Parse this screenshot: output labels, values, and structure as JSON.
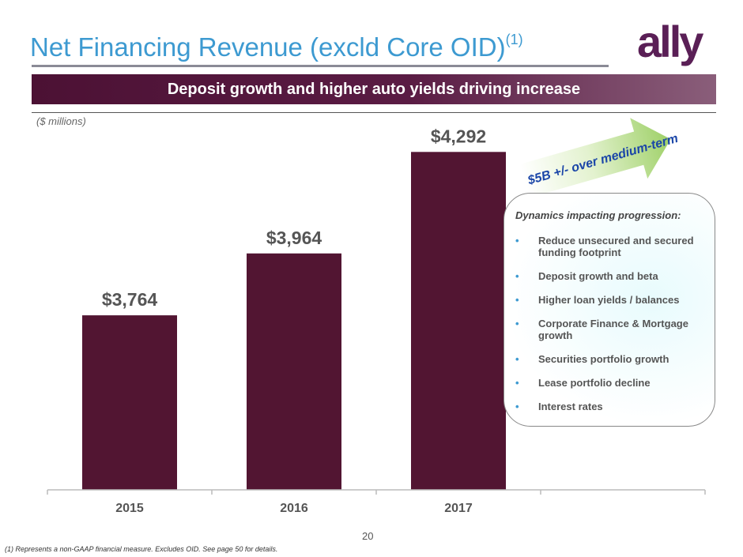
{
  "header": {
    "title": "Net Financing Revenue (excld Core OID)",
    "title_sup": "(1)",
    "logo_text": "ally",
    "banner_text": "Deposit growth and higher auto yields driving increase",
    "units_note": "($ millions)"
  },
  "chart_data": {
    "type": "bar",
    "title": "Net Financing Revenue (excld Core OID)",
    "categories": [
      "2015",
      "2016",
      "2017"
    ],
    "values": [
      3764,
      3964,
      4292
    ],
    "value_labels": [
      "$3,764",
      "$3,964",
      "$4,292"
    ],
    "ylabel": "($ millions)",
    "ylim": [
      3200,
      4400
    ],
    "grid": false,
    "bar_color": "#521532"
  },
  "callout": {
    "arrow_text": "$5B +/- over medium-term"
  },
  "dynamics": {
    "title": "Dynamics impacting progression:",
    "items": [
      "Reduce unsecured and secured funding footprint",
      "Deposit growth and beta",
      "Higher loan yields / balances",
      "Corporate Finance & Mortgage growth",
      "Securities portfolio growth",
      "Lease portfolio decline",
      "Interest rates"
    ]
  },
  "footer": {
    "page_number": "20",
    "footnote": "(1)  Represents a non-GAAP financial measure. Excludes OID. See page 50 for details."
  },
  "colors": {
    "title_blue": "#3d9ad1",
    "brand_purple": "#5a1f56",
    "bar": "#521532"
  }
}
